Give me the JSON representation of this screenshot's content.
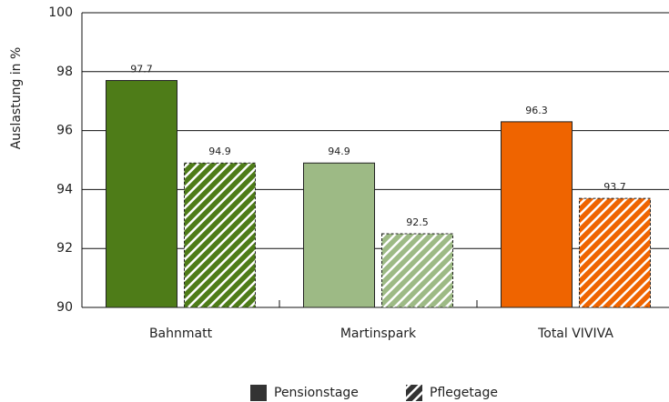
{
  "chart_data": {
    "type": "bar",
    "y_label": "Auslastung in %",
    "categories": [
      "Bahnmatt",
      "Martinspark",
      "Total VIVIVA"
    ],
    "colors": [
      "#4e7c18",
      "#9dba85",
      "#ef6400"
    ],
    "series": [
      {
        "name": "Pensionstage",
        "color": "#333333",
        "pattern": "solid",
        "values": [
          97.7,
          94.9,
          96.3
        ]
      },
      {
        "name": "Pflegetage",
        "color": "#333333",
        "pattern": "hatch",
        "values": [
          94.9,
          92.5,
          93.7
        ]
      }
    ],
    "ylim": [
      90,
      100
    ],
    "yticks": [
      90,
      92,
      94,
      96,
      98,
      100
    ],
    "grid": true
  }
}
